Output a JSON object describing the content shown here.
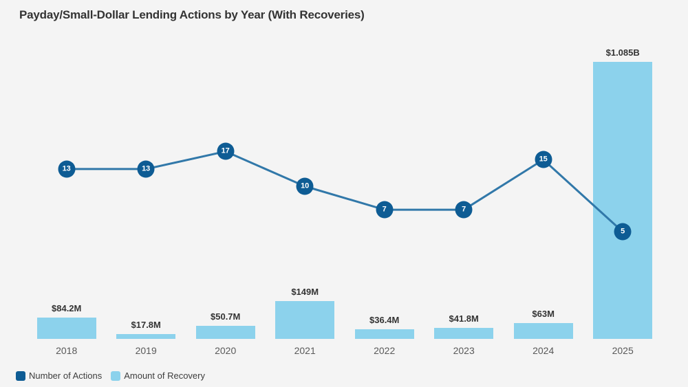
{
  "title": "Payday/Small-Dollar Lending Actions by Year (With Recoveries)",
  "colors": {
    "background": "#f4f4f4",
    "bar_fill": "#8cd2ec",
    "line_stroke": "#3178a9",
    "marker_fill": "#0e5c94",
    "marker_text": "#ffffff",
    "title_text": "#333333",
    "value_label_text": "#333333",
    "year_label_text": "#595959",
    "legend_text": "#3d3d3d"
  },
  "legend": {
    "items": [
      {
        "label": "Number of Actions",
        "swatch_color": "#0e5c94"
      },
      {
        "label": "Amount of Recovery",
        "swatch_color": "#8cd2ec"
      }
    ]
  },
  "chart_data": {
    "type": "combo line+bar",
    "title": "Payday/Small-Dollar Lending Actions by Year (With Recoveries)",
    "categories": [
      "2018",
      "2019",
      "2020",
      "2021",
      "2022",
      "2023",
      "2024",
      "2025"
    ],
    "series": [
      {
        "name": "Number of Actions",
        "type": "line",
        "scale": "log",
        "values": [
          13,
          13,
          17,
          10,
          7,
          7,
          15,
          5
        ]
      },
      {
        "name": "Amount of Recovery",
        "type": "bar",
        "scale": "linear",
        "values_millions_usd": [
          84.2,
          17.8,
          50.7,
          149,
          36.4,
          41.8,
          63,
          1085
        ],
        "value_labels": [
          "$84.2M",
          "$17.8M",
          "$50.7M",
          "$149M",
          "$36.4M",
          "$41.8M",
          "$63M",
          "$1.085B"
        ]
      }
    ],
    "grid": false,
    "axes_visible": false,
    "legend_position": "bottom-left"
  }
}
